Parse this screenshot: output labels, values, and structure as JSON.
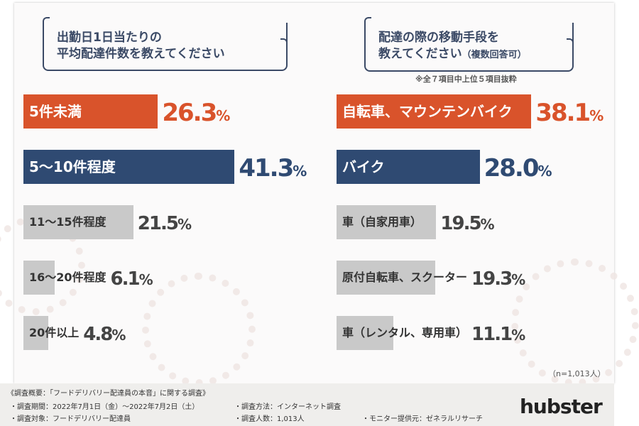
{
  "colors": {
    "highlight1": "#d9532b",
    "highlight2": "#2f4a72",
    "other": "#c9c9c9"
  },
  "chart_data": [
    {
      "type": "bar",
      "orientation": "horizontal",
      "title": "出勤日1日当たりの 平均配達件数を教えてください",
      "title_lines": [
        "出勤日1日当たりの",
        "平均配達件数を教えてください"
      ],
      "categories": [
        "5件未満",
        "5〜10件程度",
        "11〜15件程度",
        "16〜20件程度",
        "20件以上"
      ],
      "values": [
        26.3,
        41.3,
        21.5,
        6.1,
        4.8
      ],
      "unit": "%"
    },
    {
      "type": "bar",
      "orientation": "horizontal",
      "title": "配達の際の移動手段を 教えてください（複数回答可）",
      "title_lines": [
        "配達の際の移動手段を",
        "教えてください"
      ],
      "title_suffix": "（複数回答可）",
      "note": "※全７項目中上位５項目抜粋",
      "categories": [
        "自転車、マウンテンバイク",
        "バイク",
        "車（自家用車）",
        "原付自転車、スクーター",
        "車（レンタル、専用車）"
      ],
      "values": [
        38.1,
        28.0,
        19.5,
        19.3,
        11.1
      ],
      "unit": "%"
    }
  ],
  "sample_note": "（n=1,013人）",
  "footer": {
    "title": "《調査概要：「フードデリバリー配達員の本音」に関する調査》",
    "items": [
      "・調査期間：2022年7月1日（金）〜2022年7月2日（土）",
      "・調査方法：インターネット調査",
      "・調査対象：フードデリバリー配達員",
      "・調査人数：1,013人",
      "・モニター提供元：ゼネラルリサーチ"
    ],
    "logo": "hubster"
  }
}
